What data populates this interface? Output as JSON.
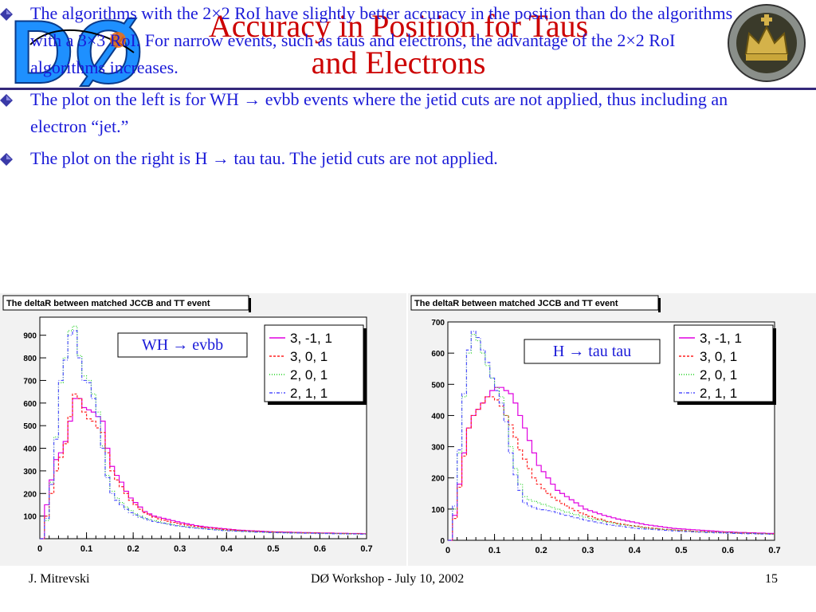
{
  "header": {
    "title_line1": "Accuracy in Position for Taus",
    "title_line2": "and Electrons",
    "left_logo_text": "DØ"
  },
  "bullets": [
    {
      "text": "The algorithms with the 2×2 RoI have slightly better accuracy in the position than do the algorithms with a 3×3 RoI. For narrow events, such as taus and electrons, the advantage of the 2×2 RoI algorithms increases."
    },
    {
      "text": "The plot on the left is for WH → evbb events where the jetid cuts are not applied, thus including an electron “jet.”"
    },
    {
      "text": "The plot on the right is H → tau tau. The jetid cuts are not applied."
    }
  ],
  "footer": {
    "author": "J. Mitrevski",
    "event": "DØ Workshop - July 10, 2002",
    "page": "15"
  },
  "colors": {
    "title": "#cc0000",
    "text": "#1a1ad8",
    "rule": "#33287a",
    "series": [
      "#e000e0",
      "#ff2020",
      "#20d020",
      "#5050ff"
    ]
  },
  "chart_data": [
    {
      "type": "line",
      "title": "The deltaR between matched JCCB and TT event",
      "annotation": "WH → evbb",
      "xlim": [
        0,
        0.7
      ],
      "ylim": [
        0,
        980
      ],
      "xticks": [
        "0",
        "0.1",
        "0.2",
        "0.3",
        "0.4",
        "0.5",
        "0.6",
        "0.7"
      ],
      "yticks": [
        "100",
        "200",
        "300",
        "400",
        "500",
        "600",
        "700",
        "800",
        "900"
      ],
      "ytick_values": [
        100,
        200,
        300,
        400,
        500,
        600,
        700,
        800,
        900
      ],
      "legend_position": "top-right",
      "bin_width": 0.01,
      "series": [
        {
          "name": "3, -1, 1",
          "values": [
            0,
            150,
            260,
            350,
            380,
            430,
            520,
            620,
            620,
            580,
            570,
            560,
            540,
            520,
            400,
            320,
            280,
            250,
            210,
            180,
            160,
            140,
            120,
            110,
            100,
            95,
            90,
            85,
            80,
            75,
            70,
            66,
            62,
            58,
            55,
            52,
            50,
            48,
            46,
            44,
            42,
            40,
            38,
            37,
            36,
            35,
            34,
            33,
            32,
            31,
            30,
            30,
            29,
            29,
            28,
            28,
            27,
            27,
            26,
            26,
            25,
            25,
            25,
            24,
            24,
            24,
            23,
            23,
            23,
            22
          ]
        },
        {
          "name": "3, 0, 1",
          "values": [
            0,
            100,
            200,
            300,
            360,
            420,
            540,
            640,
            620,
            560,
            530,
            520,
            490,
            470,
            380,
            300,
            260,
            230,
            200,
            170,
            150,
            130,
            115,
            105,
            95,
            88,
            82,
            77,
            72,
            68,
            64,
            60,
            57,
            54,
            51,
            49,
            47,
            45,
            43,
            41,
            39,
            38,
            36,
            35,
            34,
            33,
            32,
            31,
            30,
            30,
            29,
            28,
            28,
            27,
            27,
            26,
            26,
            25,
            25,
            25,
            24,
            24,
            24,
            23,
            23,
            23,
            22,
            22,
            22,
            21
          ]
        },
        {
          "name": "2, 0, 1",
          "values": [
            0,
            80,
            250,
            450,
            690,
            800,
            920,
            940,
            810,
            720,
            700,
            640,
            560,
            410,
            280,
            210,
            180,
            160,
            140,
            125,
            110,
            100,
            92,
            85,
            80,
            75,
            70,
            66,
            62,
            58,
            55,
            52,
            50,
            48,
            46,
            44,
            42,
            40,
            38,
            37,
            36,
            35,
            34,
            33,
            32,
            31,
            30,
            29,
            29,
            28,
            28,
            27,
            27,
            26,
            26,
            25,
            25,
            25,
            24,
            24,
            24,
            23,
            23,
            23,
            22,
            22,
            22,
            21,
            21,
            21
          ]
        },
        {
          "name": "2, 1, 1",
          "values": [
            0,
            90,
            240,
            440,
            700,
            790,
            900,
            920,
            800,
            700,
            690,
            620,
            540,
            400,
            270,
            200,
            170,
            150,
            130,
            115,
            105,
            95,
            88,
            82,
            76,
            72,
            68,
            64,
            60,
            57,
            54,
            51,
            49,
            47,
            45,
            43,
            41,
            39,
            38,
            36,
            35,
            34,
            33,
            32,
            31,
            30,
            29,
            29,
            28,
            27,
            27,
            26,
            26,
            25,
            25,
            25,
            24,
            24,
            24,
            23,
            23,
            23,
            22,
            22,
            22,
            21,
            21,
            21,
            20,
            20
          ]
        }
      ]
    },
    {
      "type": "line",
      "title": "The deltaR between matched JCCB and TT event",
      "annotation": "H → tau tau",
      "xlim": [
        0,
        0.7
      ],
      "ylim": [
        0,
        700
      ],
      "xticks": [
        "0",
        "0.1",
        "0.2",
        "0.3",
        "0.4",
        "0.5",
        "0.6",
        "0.7"
      ],
      "yticks": [
        "0",
        "100",
        "200",
        "300",
        "400",
        "500",
        "600",
        "700"
      ],
      "ytick_values": [
        0,
        100,
        200,
        300,
        400,
        500,
        600,
        700
      ],
      "legend_position": "top-right",
      "bin_width": 0.01,
      "series": [
        {
          "name": "3, -1, 1",
          "values": [
            0,
            80,
            180,
            280,
            360,
            400,
            420,
            440,
            460,
            480,
            490,
            490,
            480,
            470,
            440,
            400,
            360,
            320,
            280,
            240,
            220,
            200,
            180,
            160,
            150,
            140,
            130,
            120,
            110,
            100,
            95,
            90,
            85,
            80,
            76,
            72,
            68,
            65,
            62,
            59,
            56,
            53,
            50,
            48,
            46,
            44,
            42,
            40,
            38,
            37,
            36,
            35,
            34,
            33,
            32,
            31,
            30,
            29,
            28,
            27,
            27,
            26,
            25,
            25,
            24,
            24,
            23,
            23,
            22,
            22
          ]
        },
        {
          "name": "3, 0, 1",
          "values": [
            0,
            70,
            170,
            270,
            360,
            400,
            420,
            440,
            460,
            460,
            450,
            430,
            400,
            370,
            330,
            290,
            260,
            230,
            200,
            180,
            165,
            150,
            138,
            128,
            118,
            110,
            102,
            95,
            88,
            82,
            77,
            72,
            68,
            64,
            60,
            57,
            54,
            51,
            49,
            47,
            45,
            43,
            41,
            39,
            38,
            36,
            35,
            34,
            33,
            32,
            31,
            30,
            29,
            28,
            28,
            27,
            26,
            26,
            25,
            25,
            24,
            24,
            23,
            23,
            22,
            22,
            21,
            21,
            21,
            20
          ]
        },
        {
          "name": "2, 0, 1",
          "values": [
            0,
            100,
            280,
            460,
            600,
            660,
            640,
            600,
            560,
            520,
            490,
            460,
            400,
            300,
            230,
            180,
            140,
            130,
            125,
            120,
            115,
            110,
            105,
            100,
            95,
            90,
            86,
            82,
            78,
            74,
            70,
            67,
            64,
            61,
            58,
            55,
            52,
            50,
            48,
            46,
            44,
            42,
            40,
            38,
            37,
            36,
            35,
            34,
            33,
            32,
            31,
            30,
            29,
            28,
            28,
            27,
            26,
            26,
            25,
            25,
            24,
            24,
            23,
            23,
            22,
            22,
            21,
            21,
            20,
            20
          ]
        },
        {
          "name": "2, 1, 1",
          "values": [
            0,
            110,
            290,
            470,
            610,
            670,
            650,
            610,
            570,
            520,
            480,
            440,
            380,
            280,
            210,
            160,
            120,
            110,
            105,
            100,
            98,
            95,
            92,
            88,
            84,
            80,
            76,
            72,
            68,
            65,
            62,
            59,
            56,
            53,
            50,
            48,
            46,
            44,
            42,
            40,
            38,
            37,
            36,
            35,
            34,
            33,
            32,
            31,
            30,
            29,
            28,
            28,
            27,
            26,
            26,
            25,
            25,
            24,
            24,
            23,
            23,
            22,
            22,
            21,
            21,
            21,
            20,
            20,
            20,
            19
          ]
        }
      ]
    }
  ]
}
